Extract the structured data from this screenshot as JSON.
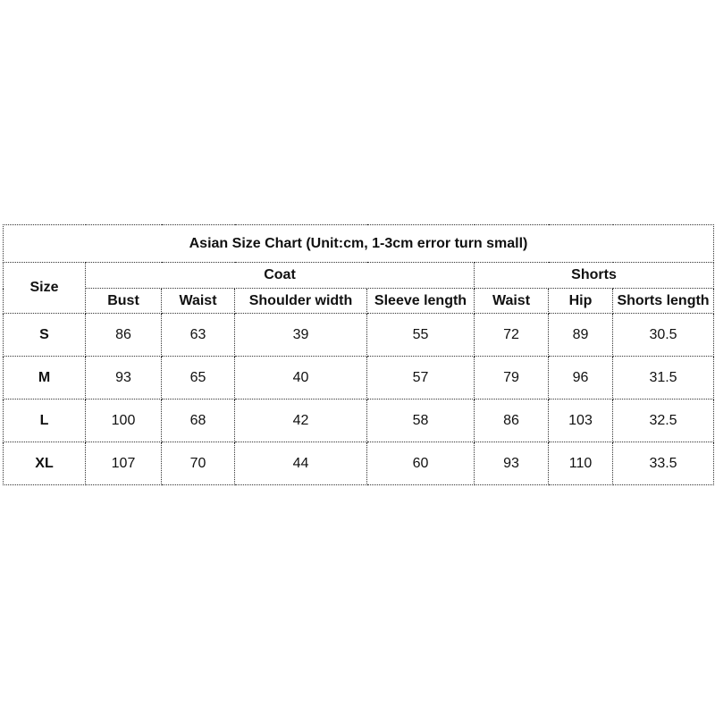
{
  "title": "Asian Size Chart (Unit:cm, 1-3cm error turn small)",
  "size_header": "Size",
  "groups": {
    "coat": "Coat",
    "shorts": "Shorts"
  },
  "columns": [
    "Bust",
    "Waist",
    "Shoulder width",
    "Sleeve length",
    "Waist",
    "Hip",
    "Shorts length"
  ],
  "rows": [
    {
      "size": "S",
      "values": [
        "86",
        "63",
        "39",
        "55",
        "72",
        "89",
        "30.5"
      ]
    },
    {
      "size": "M",
      "values": [
        "93",
        "65",
        "40",
        "57",
        "79",
        "96",
        "31.5"
      ]
    },
    {
      "size": "L",
      "values": [
        "100",
        "68",
        "42",
        "58",
        "86",
        "103",
        "32.5"
      ]
    },
    {
      "size": "XL",
      "values": [
        "107",
        "70",
        "44",
        "60",
        "93",
        "110",
        "33.5"
      ]
    }
  ]
}
